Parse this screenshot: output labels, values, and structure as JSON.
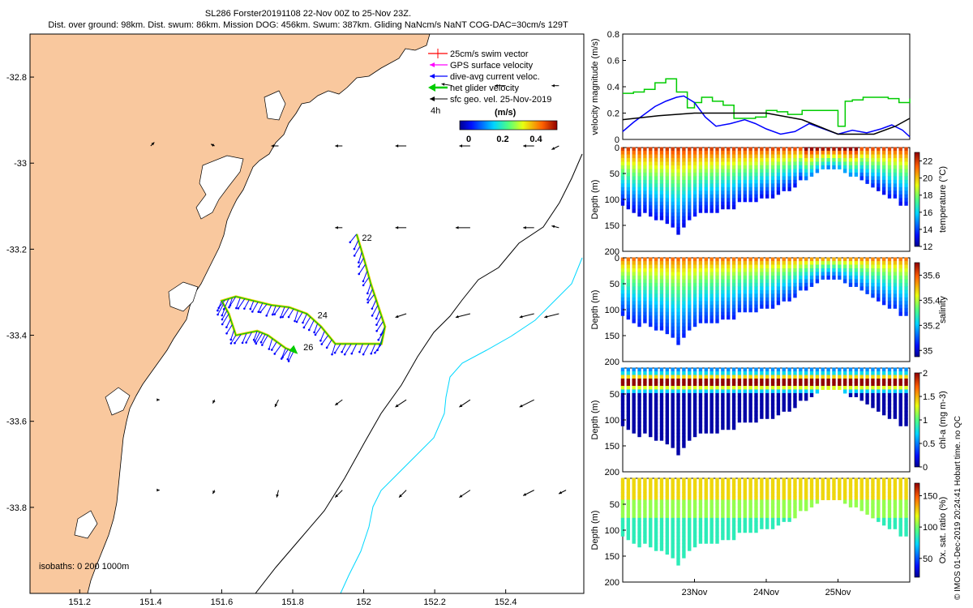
{
  "title": {
    "line1": "SL286 Forster20191108 22-Nov 00Z to 25-Nov 23Z.",
    "line2": "Dist. over ground: 98km. Dist. swum: 86km. Mission DOG: 456km. Swum: 387km. Gliding NaNcm/s NaNT COG-DAC=30cm/s 129T"
  },
  "credit": "© IMOS 01-Dec-2019 20:24:41 Hobart time. no QC",
  "colors": {
    "land": "#f9c89e",
    "swim": "#ff0000",
    "gps": "#ff00ff",
    "dac": "#0000ff",
    "net": "#00cc00",
    "sfc": "#000000",
    "iso200": "#000000",
    "iso1000": "#00d8ff"
  },
  "chart_data": [
    {
      "type": "map",
      "name": "glider-track-map",
      "xticks": [
        "151.2",
        "151.4",
        "151.6",
        "151.8",
        "152",
        "152.2",
        "152.4"
      ],
      "yticks": [
        "-32.8",
        "-33",
        "-33.2",
        "-33.4",
        "-33.6",
        "-33.8"
      ],
      "xlim": [
        151.06,
        152.62
      ],
      "ylim": [
        -34.0,
        -32.7
      ],
      "legend": [
        {
          "label": "25cm/s swim vector",
          "color": "#ff0000"
        },
        {
          "label": "GPS surface velocity",
          "color": "#ff00ff"
        },
        {
          "label": "dive-avg current veloc.",
          "color": "#0000ff"
        },
        {
          "label": "net glider velocity",
          "color": "#00cc00"
        },
        {
          "label": "sfc geo. vel. 25-Nov-2019",
          "color": "#000000"
        }
      ],
      "interval_label": "4h",
      "colorbar": {
        "label": "(m/s)",
        "ticks": [
          "0",
          "0.2",
          "0.4"
        ],
        "range": [
          0,
          0.5
        ]
      },
      "day_labels": [
        {
          "text": "22",
          "lon": 151.995,
          "lat": -33.18
        },
        {
          "text": "24",
          "lon": 151.87,
          "lat": -33.36
        },
        {
          "text": "26",
          "lon": 151.83,
          "lat": -33.435
        }
      ],
      "isobaths_label": "isobaths: 0   200  1000m",
      "track": [
        [
          151.98,
          -33.165
        ],
        [
          152.0,
          -33.22
        ],
        [
          152.02,
          -33.28
        ],
        [
          152.04,
          -33.33
        ],
        [
          152.06,
          -33.38
        ],
        [
          152.05,
          -33.42
        ],
        [
          151.98,
          -33.42
        ],
        [
          151.92,
          -33.42
        ],
        [
          151.88,
          -33.38
        ],
        [
          151.84,
          -33.35
        ],
        [
          151.79,
          -33.335
        ],
        [
          151.74,
          -33.33
        ],
        [
          151.69,
          -33.32
        ],
        [
          151.64,
          -33.31
        ],
        [
          151.6,
          -33.32
        ],
        [
          151.62,
          -33.35
        ],
        [
          151.64,
          -33.4
        ],
        [
          151.7,
          -33.39
        ],
        [
          151.73,
          -33.4
        ],
        [
          151.78,
          -33.43
        ],
        [
          151.81,
          -33.44
        ]
      ],
      "geo_vectors": [
        {
          "lon": 152.25,
          "lat": -32.82,
          "u": -0.03,
          "v": 0.005
        },
        {
          "lon": 152.4,
          "lat": -32.82,
          "u": -0.03,
          "v": 0.0
        },
        {
          "lon": 152.55,
          "lat": -32.82,
          "u": -0.02,
          "v": 0.0
        },
        {
          "lon": 151.4,
          "lat": -32.96,
          "u": 0.01,
          "v": 0.01
        },
        {
          "lon": 151.58,
          "lat": -32.96,
          "u": -0.01,
          "v": 0.005
        },
        {
          "lon": 151.76,
          "lat": -32.96,
          "u": -0.02,
          "v": 0.0
        },
        {
          "lon": 151.94,
          "lat": -32.96,
          "u": -0.02,
          "v": 0.0
        },
        {
          "lon": 152.12,
          "lat": -32.96,
          "u": -0.03,
          "v": 0.0
        },
        {
          "lon": 152.3,
          "lat": -32.96,
          "u": -0.03,
          "v": 0.0
        },
        {
          "lon": 152.48,
          "lat": -32.96,
          "u": -0.03,
          "v": 0.0
        },
        {
          "lon": 152.55,
          "lat": -32.96,
          "u": -0.02,
          "v": -0.01
        },
        {
          "lon": 151.94,
          "lat": -33.15,
          "u": -0.02,
          "v": 0.0
        },
        {
          "lon": 152.12,
          "lat": -33.15,
          "u": -0.03,
          "v": 0.0
        },
        {
          "lon": 152.3,
          "lat": -33.15,
          "u": -0.04,
          "v": 0.0
        },
        {
          "lon": 152.48,
          "lat": -33.15,
          "u": -0.03,
          "v": 0.0
        },
        {
          "lon": 152.55,
          "lat": -33.15,
          "u": -0.02,
          "v": 0.005
        },
        {
          "lon": 152.12,
          "lat": -33.35,
          "u": -0.03,
          "v": -0.01
        },
        {
          "lon": 152.3,
          "lat": -33.35,
          "u": -0.04,
          "v": -0.01
        },
        {
          "lon": 152.48,
          "lat": -33.35,
          "u": -0.04,
          "v": -0.01
        },
        {
          "lon": 152.55,
          "lat": -33.35,
          "u": -0.04,
          "v": -0.01
        },
        {
          "lon": 151.42,
          "lat": -33.55,
          "u": 0.005,
          "v": 0.0
        },
        {
          "lon": 151.58,
          "lat": -33.55,
          "u": -0.005,
          "v": -0.01
        },
        {
          "lon": 151.76,
          "lat": -33.55,
          "u": -0.01,
          "v": -0.02
        },
        {
          "lon": 151.94,
          "lat": -33.55,
          "u": -0.02,
          "v": -0.015
        },
        {
          "lon": 152.12,
          "lat": -33.55,
          "u": -0.03,
          "v": -0.02
        },
        {
          "lon": 152.3,
          "lat": -33.55,
          "u": -0.03,
          "v": -0.02
        },
        {
          "lon": 152.48,
          "lat": -33.55,
          "u": -0.04,
          "v": -0.02
        },
        {
          "lon": 151.42,
          "lat": -33.76,
          "u": 0.005,
          "v": 0.0
        },
        {
          "lon": 151.58,
          "lat": -33.76,
          "u": -0.005,
          "v": -0.01
        },
        {
          "lon": 151.76,
          "lat": -33.76,
          "u": -0.005,
          "v": -0.02
        },
        {
          "lon": 151.94,
          "lat": -33.76,
          "u": -0.02,
          "v": -0.02
        },
        {
          "lon": 152.12,
          "lat": -33.76,
          "u": -0.02,
          "v": -0.02
        },
        {
          "lon": 152.3,
          "lat": -33.76,
          "u": -0.03,
          "v": -0.02
        },
        {
          "lon": 152.48,
          "lat": -33.76,
          "u": -0.03,
          "v": -0.015
        },
        {
          "lon": 152.57,
          "lat": -33.76,
          "u": -0.02,
          "v": -0.01
        }
      ]
    },
    {
      "type": "line",
      "name": "velocity-magnitude",
      "ylabel": "velocity magnitude (m/s)",
      "yticks": [
        "0",
        "0.2",
        "0.4",
        "0.6",
        "0.8"
      ],
      "ylim": [
        0,
        0.8
      ],
      "x_range_days": [
        22.0,
        26.0
      ],
      "series": [
        {
          "name": "net glider velocity",
          "color": "#00cc00",
          "x": [
            22.0,
            22.15,
            22.3,
            22.45,
            22.6,
            22.75,
            22.9,
            23.0,
            23.1,
            23.25,
            23.4,
            23.55,
            23.7,
            23.85,
            24.0,
            24.15,
            24.3,
            24.5,
            24.7,
            24.9,
            25.0,
            25.1,
            25.2,
            25.35,
            25.5,
            25.7,
            25.85,
            26.0
          ],
          "values": [
            0.35,
            0.36,
            0.38,
            0.43,
            0.46,
            0.36,
            0.24,
            0.28,
            0.32,
            0.29,
            0.26,
            0.16,
            0.16,
            0.17,
            0.22,
            0.21,
            0.19,
            0.22,
            0.22,
            0.22,
            0.1,
            0.29,
            0.3,
            0.32,
            0.32,
            0.31,
            0.28,
            0.31
          ]
        },
        {
          "name": "dive-avg current",
          "color": "#0000ff",
          "x": [
            22.0,
            22.15,
            22.3,
            22.45,
            22.6,
            22.75,
            22.85,
            23.0,
            23.15,
            23.3,
            23.5,
            23.7,
            23.85,
            24.0,
            24.2,
            24.4,
            24.6,
            24.8,
            25.0,
            25.2,
            25.4,
            25.6,
            25.75,
            25.9,
            26.0
          ],
          "values": [
            0.06,
            0.13,
            0.19,
            0.25,
            0.29,
            0.32,
            0.33,
            0.28,
            0.17,
            0.1,
            0.12,
            0.15,
            0.12,
            0.08,
            0.04,
            0.06,
            0.12,
            0.08,
            0.04,
            0.07,
            0.05,
            0.08,
            0.11,
            0.07,
            0.02
          ]
        },
        {
          "name": "sfc geo. vel.",
          "color": "#000000",
          "x": [
            22.0,
            22.5,
            23.0,
            23.5,
            24.0,
            24.5,
            25.0,
            25.5,
            25.8,
            26.0
          ],
          "values": [
            0.15,
            0.18,
            0.2,
            0.2,
            0.2,
            0.15,
            0.04,
            0.04,
            0.1,
            0.16
          ]
        }
      ]
    },
    {
      "type": "heatmap",
      "name": "temperature-section",
      "ylabel": "Depth (m)",
      "cbar_label": "temperature (°C)",
      "yticks": [
        "0",
        "50",
        "100",
        "150",
        "200"
      ],
      "cbar_ticks": [
        "12",
        "14",
        "16",
        "18",
        "20",
        "22"
      ],
      "cbar_range": [
        12,
        23
      ],
      "profile_max_depth_m": [
        [
          22.0,
          120
        ],
        [
          22.4,
          140
        ],
        [
          22.8,
          170
        ],
        [
          23.0,
          140
        ],
        [
          23.4,
          125
        ],
        [
          23.8,
          110
        ],
        [
          24.2,
          95
        ],
        [
          24.6,
          60
        ],
        [
          24.9,
          40
        ],
        [
          25.2,
          60
        ],
        [
          25.6,
          90
        ],
        [
          25.9,
          120
        ]
      ],
      "surface_value": 22.5,
      "deep_value": 13
    },
    {
      "type": "heatmap",
      "name": "salinity-section",
      "ylabel": "Depth (m)",
      "cbar_label": "salinity",
      "yticks": [
        "0",
        "50",
        "100",
        "150",
        "200"
      ],
      "cbar_ticks": [
        "35",
        "35.2",
        "35.4",
        "35.6"
      ],
      "cbar_range": [
        34.95,
        35.7
      ],
      "surface_value": 35.6,
      "deep_value": 35.05
    },
    {
      "type": "heatmap",
      "name": "chla-section",
      "ylabel": "Depth (m)",
      "cbar_label": "chl-a (mg m-3)",
      "yticks": [
        "50",
        "100",
        "150",
        "200"
      ],
      "cbar_ticks": [
        "0",
        "0.5",
        "1",
        "1.5",
        "2"
      ],
      "cbar_range": [
        0,
        2
      ],
      "surface_value": 0.6,
      "max_value": 1.9,
      "deep_value": 0.05
    },
    {
      "type": "heatmap",
      "name": "oxygen-section",
      "ylabel": "Depth (m)",
      "cbar_label": "Ox. sat. ratio (%)",
      "yticks": [
        "50",
        "100",
        "150",
        "200"
      ],
      "cbar_ticks": [
        "50",
        "100",
        "150"
      ],
      "cbar_range": [
        20,
        170
      ],
      "surface_value": 120,
      "deep_value": 80,
      "xticks": [
        "23Nov",
        "24Nov",
        "25Nov"
      ]
    }
  ]
}
